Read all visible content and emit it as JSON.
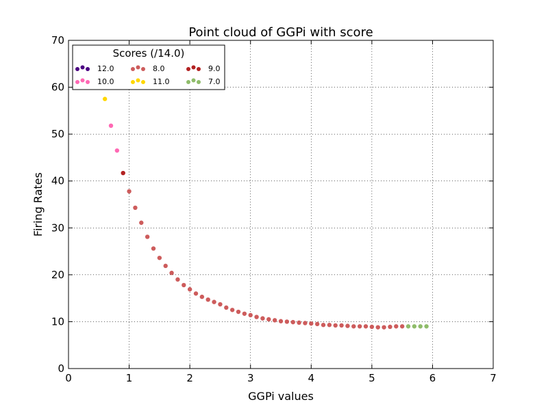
{
  "chart_data": {
    "type": "scatter",
    "title": "Point cloud of GGPi with score",
    "xlabel": "GGPi values",
    "ylabel": "Firing Rates",
    "xlim": [
      0,
      7
    ],
    "ylim": [
      0,
      70
    ],
    "xticks": [
      "0",
      "1",
      "2",
      "3",
      "4",
      "5",
      "6",
      "7"
    ],
    "yticks": [
      "0",
      "10",
      "20",
      "30",
      "40",
      "50",
      "60",
      "70"
    ],
    "grid": true,
    "legend": {
      "title": "Scores (/14.0)",
      "placement": "top-left",
      "entries": [
        {
          "label": "12.0",
          "color": "#4b0082"
        },
        {
          "label": "10.0",
          "color": "#ff69b4"
        },
        {
          "label": "8.0",
          "color": "#cd5c5c"
        },
        {
          "label": "11.0",
          "color": "#ffd700"
        },
        {
          "label": "9.0",
          "color": "#b22222"
        },
        {
          "label": "7.0",
          "color": "#8fbc6a"
        }
      ]
    },
    "series": [
      {
        "name": "11.0",
        "color": "#ffd700",
        "points": [
          [
            0.6,
            57.5
          ]
        ]
      },
      {
        "name": "10.0",
        "color": "#ff69b4",
        "points": [
          [
            0.7,
            51.8
          ],
          [
            0.8,
            46.5
          ]
        ]
      },
      {
        "name": "9.0",
        "color": "#b22222",
        "points": [
          [
            0.9,
            41.7
          ]
        ]
      },
      {
        "name": "8.0",
        "color": "#cd5c5c",
        "points": [
          [
            1.0,
            37.8
          ],
          [
            1.1,
            34.3
          ],
          [
            1.2,
            31.1
          ],
          [
            1.3,
            28.1
          ],
          [
            1.4,
            25.6
          ],
          [
            1.5,
            23.6
          ],
          [
            1.6,
            21.9
          ],
          [
            1.7,
            20.4
          ],
          [
            1.8,
            19.0
          ],
          [
            1.9,
            17.8
          ],
          [
            2.0,
            16.9
          ],
          [
            2.1,
            16.0
          ],
          [
            2.2,
            15.3
          ],
          [
            2.3,
            14.7
          ],
          [
            2.4,
            14.2
          ],
          [
            2.5,
            13.7
          ],
          [
            2.6,
            13.0
          ],
          [
            2.7,
            12.5
          ],
          [
            2.8,
            12.1
          ],
          [
            2.9,
            11.7
          ],
          [
            3.0,
            11.4
          ],
          [
            3.1,
            11.0
          ],
          [
            3.2,
            10.7
          ],
          [
            3.3,
            10.5
          ],
          [
            3.4,
            10.3
          ],
          [
            3.5,
            10.1
          ],
          [
            3.6,
            10.0
          ],
          [
            3.7,
            9.9
          ],
          [
            3.8,
            9.8
          ],
          [
            3.9,
            9.7
          ],
          [
            4.0,
            9.6
          ],
          [
            4.1,
            9.5
          ],
          [
            4.2,
            9.3
          ],
          [
            4.3,
            9.3
          ],
          [
            4.4,
            9.2
          ],
          [
            4.5,
            9.2
          ],
          [
            4.6,
            9.1
          ],
          [
            4.7,
            9.0
          ],
          [
            4.8,
            9.0
          ],
          [
            4.9,
            9.0
          ],
          [
            5.0,
            8.9
          ],
          [
            5.1,
            8.8
          ],
          [
            5.2,
            8.8
          ],
          [
            5.3,
            8.9
          ],
          [
            5.4,
            9.0
          ],
          [
            5.5,
            9.0
          ]
        ]
      },
      {
        "name": "7.0",
        "color": "#8fbc6a",
        "points": [
          [
            5.6,
            9.0
          ],
          [
            5.7,
            9.0
          ],
          [
            5.8,
            9.0
          ],
          [
            5.9,
            9.0
          ]
        ]
      }
    ]
  }
}
